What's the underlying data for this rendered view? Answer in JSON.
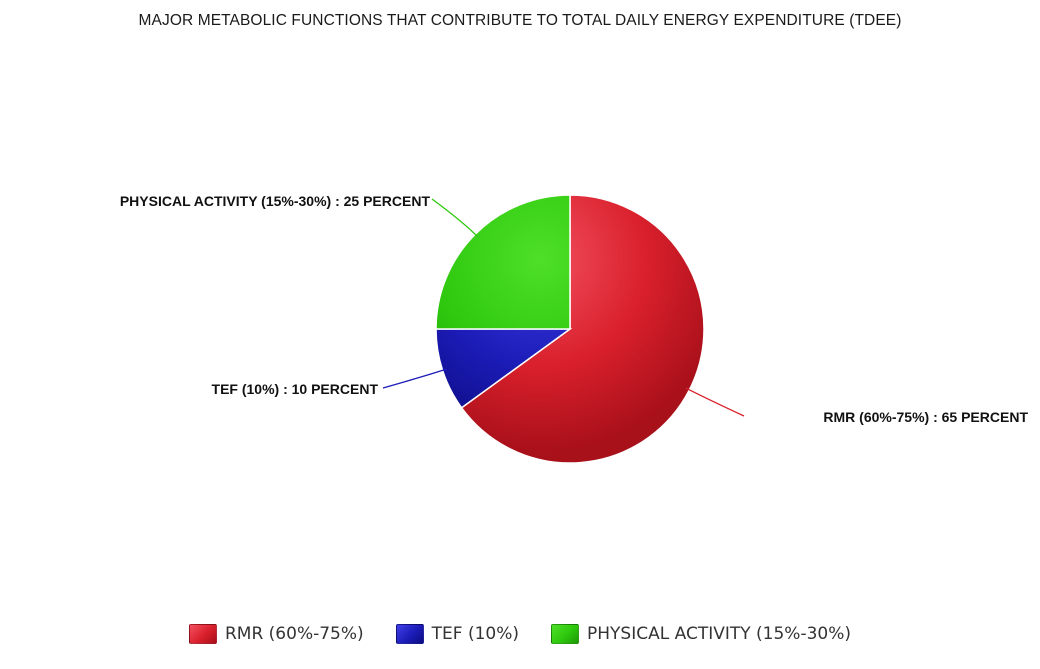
{
  "chart_data": {
    "type": "pie",
    "title": "MAJOR METABOLIC FUNCTIONS THAT CONTRIBUTE TO TOTAL DAILY ENERGY EXPENDITURE (TDEE)",
    "unit_word": "PERCENT",
    "legend_position": "bottom",
    "slices": [
      {
        "name": "RMR (60%-75%)",
        "label": "RMR (60%-75%) : 65 PERCENT",
        "value": 65,
        "color": "#d9202c",
        "light": "#f25060",
        "dark": "#a8101a"
      },
      {
        "name": "TEF (10%)",
        "label": "TEF (10%) : 10 PERCENT",
        "value": 10,
        "color": "#1c1cb8",
        "light": "#4040e6",
        "dark": "#0c0c82"
      },
      {
        "name": "PHYSICAL ACTIVITY (15%-30%)",
        "label": "PHYSICAL ACTIVITY (15%-30%) : 25 PERCENT",
        "value": 25,
        "color": "#2ec80e",
        "light": "#4ee028",
        "dark": "#1f9a05"
      }
    ]
  }
}
